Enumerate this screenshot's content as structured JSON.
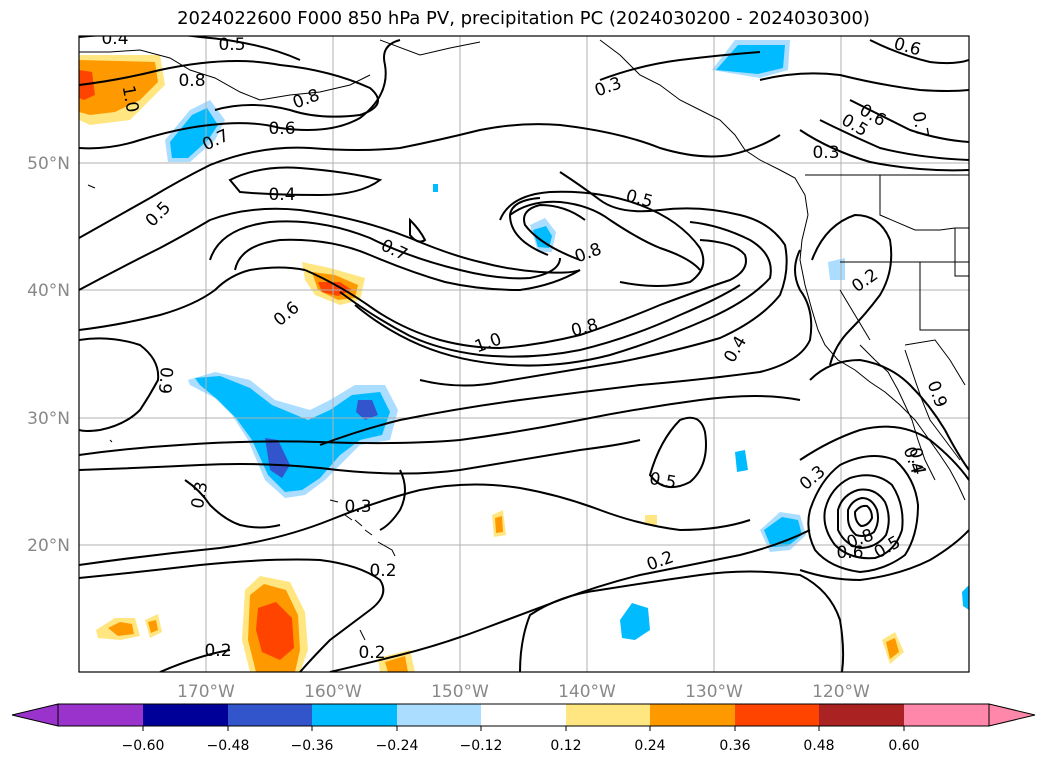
{
  "title": "2024022600 F000 850 hPa PV, precipitation PC (2024030200 - 2024030300)",
  "axes": {
    "lat_labels": [
      "50°N",
      "40°N",
      "30°N",
      "20°N"
    ],
    "lon_labels": [
      "170°W",
      "160°W",
      "150°W",
      "140°W",
      "130°W",
      "120°W"
    ]
  },
  "contour_labels": [
    {
      "id": "c04a",
      "text": "0.4"
    },
    {
      "id": "c05a",
      "text": "0.5"
    },
    {
      "id": "c08a",
      "text": "0.8"
    },
    {
      "id": "c10a",
      "text": "1.0"
    },
    {
      "id": "c08b",
      "text": "0.8"
    },
    {
      "id": "c07a",
      "text": "0.7"
    },
    {
      "id": "c06a",
      "text": "0.6"
    },
    {
      "id": "c04b",
      "text": "0.4"
    },
    {
      "id": "c05b",
      "text": "0.5"
    },
    {
      "id": "c07b",
      "text": "0.7"
    },
    {
      "id": "c06b",
      "text": "0.6"
    },
    {
      "id": "c10b",
      "text": "1.0"
    },
    {
      "id": "c08c",
      "text": "0.8"
    },
    {
      "id": "c05c",
      "text": "0.5"
    },
    {
      "id": "c08d",
      "text": "0.8"
    },
    {
      "id": "c03a",
      "text": "0.3"
    },
    {
      "id": "c06c",
      "text": "0.6"
    },
    {
      "id": "c05d",
      "text": "0.5"
    },
    {
      "id": "c06d",
      "text": "0.6"
    },
    {
      "id": "c07c",
      "text": "0.7"
    },
    {
      "id": "c03b",
      "text": "0.3"
    },
    {
      "id": "c02a",
      "text": "0.2"
    },
    {
      "id": "c04c",
      "text": "0.4"
    },
    {
      "id": "c09a",
      "text": "0.9"
    },
    {
      "id": "c03c",
      "text": "0.3"
    },
    {
      "id": "c03d",
      "text": "0.3"
    },
    {
      "id": "c02b",
      "text": "0.2"
    },
    {
      "id": "c05e",
      "text": "0.5"
    },
    {
      "id": "c02c",
      "text": "0.2"
    },
    {
      "id": "c02d",
      "text": "0.2"
    },
    {
      "id": "c02e",
      "text": "0.2"
    },
    {
      "id": "c03e",
      "text": "0.3"
    },
    {
      "id": "c04d",
      "text": "0.4"
    },
    {
      "id": "c08e",
      "text": "0.8"
    },
    {
      "id": "c06e",
      "text": "0.6"
    },
    {
      "id": "c05f",
      "text": "0.5"
    },
    {
      "id": "c09b",
      "text": "0.9"
    },
    {
      "id": "c04e",
      "text": "0.4"
    }
  ],
  "colorbar": {
    "ticks": [
      "−0.60",
      "−0.48",
      "−0.36",
      "−0.24",
      "−0.12",
      "0.12",
      "0.24",
      "0.36",
      "0.48",
      "0.60"
    ],
    "colors": [
      "#9933cc",
      "#000099",
      "#3355cc",
      "#00bbff",
      "#aaddff",
      "#ffffff",
      "#ffe680",
      "#ff9900",
      "#ff4400",
      "#aa2222",
      "#ff88aa"
    ]
  }
}
